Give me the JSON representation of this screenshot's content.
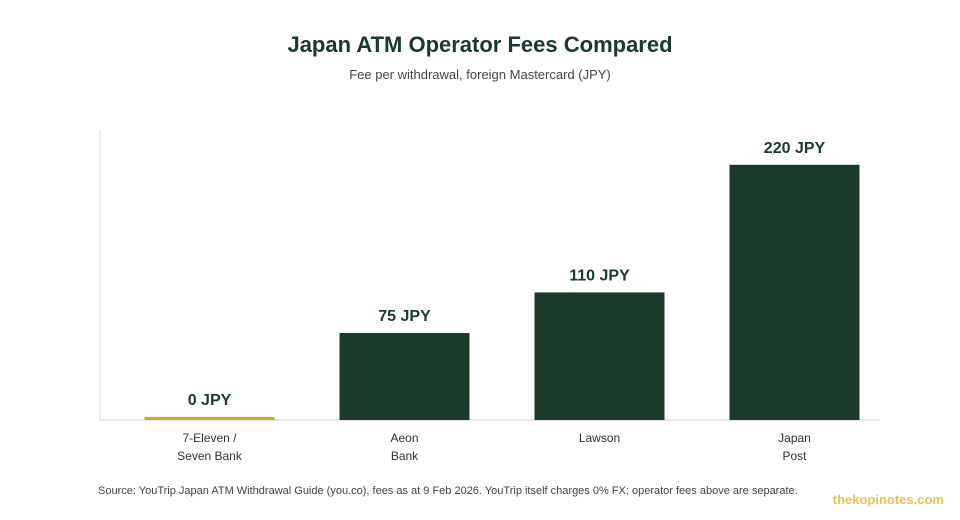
{
  "title": "Japan ATM Operator Fees Compared",
  "subtitle": "Fee per withdrawal, foreign Mastercard (JPY)",
  "source": "Source: YouTrip Japan ATM Withdrawal Guide (you.co), fees as at 9 Feb 2026. YouTrip itself charges 0% FX; operator fees above are separate.",
  "watermark": "thekopinotes.com",
  "colors": {
    "bar": "#1b3a2a",
    "highlight": "#d4a62a",
    "axis": "#cccccc",
    "label": "#1b3a2a"
  },
  "chart_data": {
    "type": "bar",
    "categories": [
      [
        "7-Eleven /",
        "Seven Bank"
      ],
      [
        "Aeon",
        "Bank"
      ],
      [
        "Lawson"
      ],
      [
        "Japan",
        "Post"
      ]
    ],
    "values": [
      0,
      75,
      110,
      220
    ],
    "data_labels": [
      "0 JPY",
      "75 JPY",
      "110 JPY",
      "220 JPY"
    ],
    "highlight_index": 0,
    "ylim": [
      0,
      250
    ],
    "grid": false,
    "legend": "none"
  }
}
